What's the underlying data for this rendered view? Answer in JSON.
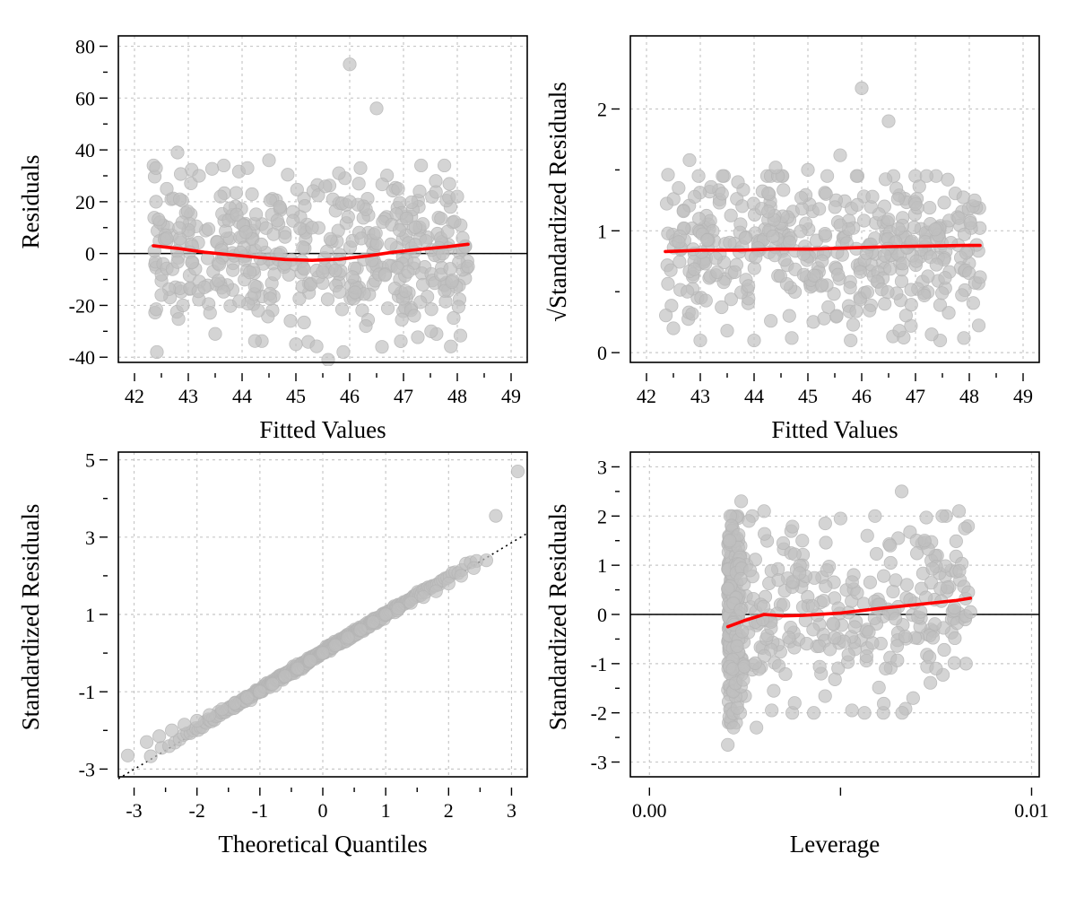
{
  "chart_data": [
    {
      "type": "scatter",
      "id": "residuals-vs-fitted",
      "title": "",
      "xlabel": "Fitted Values",
      "ylabel": "Residuals",
      "xlim": [
        41.7,
        49.3
      ],
      "ylim": [
        -42,
        84
      ],
      "xticks": [
        42,
        43,
        44,
        45,
        46,
        47,
        48,
        49
      ],
      "xtick_labels": [
        "42",
        "43",
        "44",
        "45",
        "46",
        "47",
        "48",
        "49"
      ],
      "yticks": [
        -40,
        -20,
        0,
        20,
        40,
        60,
        80
      ],
      "ytick_labels": [
        "-40",
        "-20",
        "0",
        "20",
        "40",
        "60",
        "80"
      ],
      "grid": true,
      "reference_line": {
        "kind": "horizontal",
        "y": 0
      },
      "smooth_line": {
        "x": [
          42.35,
          42.8,
          43.3,
          43.8,
          44.3,
          44.8,
          45.3,
          45.8,
          46.3,
          46.8,
          47.3,
          47.8,
          48.2
        ],
        "y": [
          3,
          2,
          0.5,
          -0.5,
          -1.5,
          -2.3,
          -2.6,
          -2.2,
          -1.0,
          0.5,
          1.6,
          2.6,
          3.6
        ]
      },
      "points": {
        "x": [
          42.4,
          42.4,
          42.5,
          42.8,
          42.6,
          42.9,
          43.2,
          43.3,
          43.5,
          43.6,
          43.9,
          44.1,
          44.3,
          44.5,
          44.6,
          44.7,
          44.9,
          45.0,
          45.3,
          45.6,
          45.8,
          46.0,
          46.0,
          46.1,
          46.2,
          46.3,
          46.5,
          46.6,
          46.9,
          47.2,
          47.3,
          47.6,
          47.9,
          48.0,
          48.1,
          48.2
        ],
        "y": [
          33,
          20,
          -16,
          39,
          25,
          -20,
          30,
          -13,
          -31,
          22,
          15,
          33,
          -22,
          36,
          -8,
          18,
          -26,
          -35,
          10,
          -41,
          31,
          73,
          20,
          -15,
          33,
          -28,
          56,
          -36,
          25,
          -24,
          24,
          28,
          -11,
          22,
          6,
          -5
        ]
      }
    },
    {
      "type": "scatter",
      "id": "scale-location",
      "title": "",
      "xlabel": "Fitted Values",
      "ylabel": "√Standardized Residuals",
      "xlim": [
        41.7,
        49.3
      ],
      "ylim": [
        -0.08,
        2.6
      ],
      "xticks": [
        42,
        43,
        44,
        45,
        46,
        47,
        48,
        49
      ],
      "xtick_labels": [
        "42",
        "43",
        "44",
        "45",
        "46",
        "47",
        "48",
        "49"
      ],
      "yticks": [
        0,
        1,
        2
      ],
      "ytick_labels": [
        "0",
        "1",
        "2"
      ],
      "grid": true,
      "smooth_line": {
        "x": [
          42.35,
          43.0,
          43.7,
          44.4,
          45.1,
          45.8,
          46.5,
          47.2,
          47.9,
          48.2
        ],
        "y": [
          0.83,
          0.84,
          0.84,
          0.85,
          0.85,
          0.86,
          0.87,
          0.875,
          0.88,
          0.88
        ]
      },
      "points": {
        "x": [
          42.4,
          42.5,
          42.8,
          43.0,
          43.2,
          43.5,
          43.7,
          44.0,
          44.4,
          44.7,
          45.0,
          45.3,
          45.6,
          45.9,
          46.0,
          46.2,
          46.5,
          46.7,
          47.0,
          47.3,
          47.6,
          47.9,
          48.1,
          48.2
        ],
        "y": [
          1.46,
          0.2,
          1.58,
          0.1,
          1.36,
          0.18,
          1.4,
          0.1,
          1.52,
          0.12,
          1.5,
          0.28,
          1.62,
          0.34,
          2.17,
          1.28,
          1.9,
          0.18,
          1.22,
          0.15,
          1.42,
          0.12,
          1.25,
          0.62
        ]
      }
    },
    {
      "type": "scatter",
      "id": "normal-qq",
      "title": "",
      "xlabel": "Theoretical Quantiles",
      "ylabel": "Standardized Residuals",
      "xlim": [
        -3.25,
        3.25
      ],
      "ylim": [
        -3.2,
        5.2
      ],
      "xticks": [
        -3,
        -2,
        -1,
        0,
        1,
        2,
        3
      ],
      "xtick_labels": [
        "-3",
        "-2",
        "-1",
        "0",
        "1",
        "2",
        "3"
      ],
      "yticks": [
        -3,
        -1,
        1,
        3,
        5
      ],
      "ytick_labels": [
        "-3",
        "-1",
        "1",
        "3",
        "5"
      ],
      "grid": true,
      "qq_line": {
        "x": [
          -3.25,
          3.25
        ],
        "y": [
          -3.25,
          3.1
        ]
      },
      "points": {
        "x": [
          -3.1,
          -2.8,
          -2.6,
          -2.4,
          -2.2,
          -2.0,
          -1.8,
          -1.6,
          -1.4,
          -1.2,
          -1.0,
          -0.8,
          -0.6,
          -0.4,
          -0.2,
          0.0,
          0.2,
          0.4,
          0.6,
          0.8,
          1.0,
          1.2,
          1.4,
          1.6,
          1.8,
          2.0,
          2.2,
          2.4,
          2.6,
          2.75,
          3.1
        ],
        "y": [
          -2.65,
          -2.3,
          -2.15,
          -2.0,
          -1.85,
          -1.75,
          -1.6,
          -1.45,
          -1.3,
          -1.15,
          -1.0,
          -0.8,
          -0.6,
          -0.4,
          -0.2,
          0.0,
          0.2,
          0.4,
          0.6,
          0.8,
          1.0,
          1.15,
          1.3,
          1.45,
          1.6,
          1.8,
          2.0,
          2.2,
          2.4,
          3.55,
          4.7
        ]
      }
    },
    {
      "type": "scatter",
      "id": "residuals-vs-leverage",
      "title": "",
      "xlabel": "Leverage",
      "ylabel": "Standardized Residuals",
      "xlim": [
        -0.0005,
        0.0102
      ],
      "ylim": [
        -3.3,
        3.3
      ],
      "xticks": [
        0.0,
        0.005,
        0.01
      ],
      "xtick_labels": [
        "0.00",
        "",
        "0.01"
      ],
      "yticks": [
        -3,
        -2,
        -1,
        0,
        1,
        2,
        3
      ],
      "ytick_labels": [
        "-3",
        "-2",
        "-1",
        "0",
        "1",
        "2",
        "3"
      ],
      "grid": true,
      "reference_line": {
        "kind": "horizontal",
        "y": 0
      },
      "smooth_line": {
        "x": [
          0.00205,
          0.0025,
          0.003,
          0.0035,
          0.004,
          0.005,
          0.006,
          0.007,
          0.008,
          0.0084
        ],
        "y": [
          -0.25,
          -0.12,
          0.0,
          -0.03,
          -0.02,
          0.03,
          0.12,
          0.2,
          0.28,
          0.33
        ]
      },
      "points": {
        "x": [
          0.00205,
          0.0021,
          0.0022,
          0.0023,
          0.0024,
          0.0026,
          0.0028,
          0.003,
          0.0032,
          0.0035,
          0.0038,
          0.004,
          0.0043,
          0.0046,
          0.005,
          0.0053,
          0.0057,
          0.006,
          0.0063,
          0.0066,
          0.0069,
          0.0072,
          0.0075,
          0.0078,
          0.0081,
          0.0084
        ],
        "y": [
          -2.65,
          1.5,
          -2.3,
          -1.9,
          2.3,
          1.9,
          -2.3,
          2.1,
          -1.95,
          1.45,
          -1.8,
          1.5,
          -2.0,
          1.85,
          1.95,
          -1.95,
          1.6,
          0.2,
          1.4,
          2.5,
          -1.7,
          1.5,
          -1.1,
          0.55,
          2.1,
          0.05
        ]
      }
    }
  ]
}
